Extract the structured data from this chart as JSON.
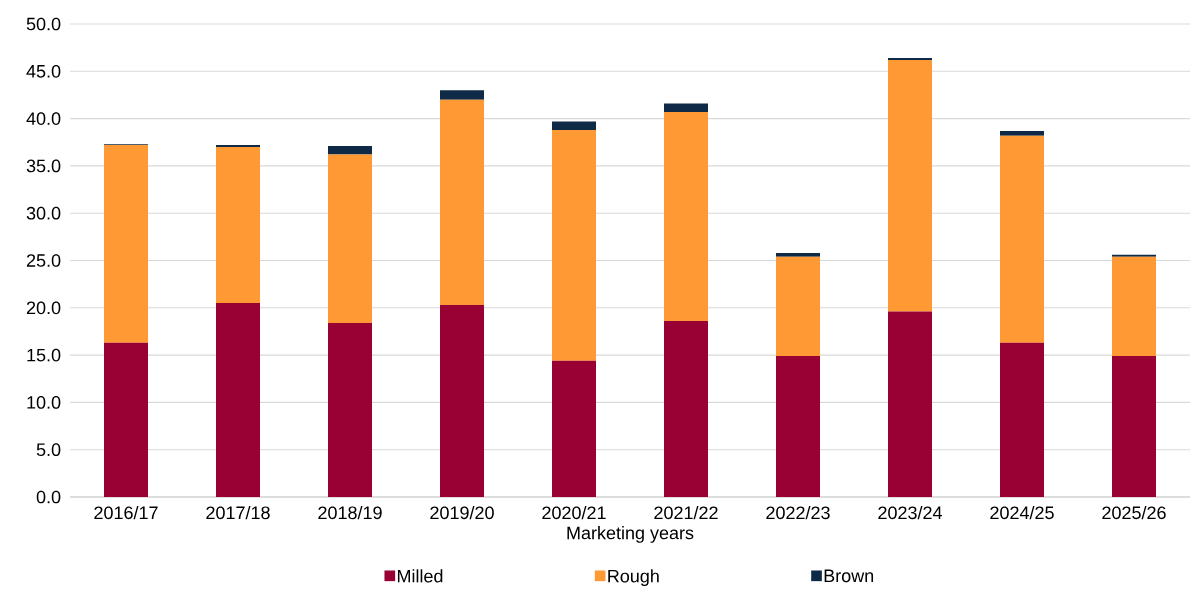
{
  "chart_data": {
    "type": "bar",
    "stacked": true,
    "xlabel": "Marketing years",
    "categories": [
      "2016/17",
      "2017/18",
      "2018/19",
      "2019/20",
      "2020/21",
      "2021/22",
      "2022/23",
      "2023/24",
      "2024/25",
      "2025/26"
    ],
    "series": [
      {
        "name": "Milled",
        "color": "#990033",
        "values": [
          16.3,
          20.5,
          18.4,
          20.3,
          14.4,
          18.6,
          14.9,
          19.6,
          16.3,
          14.9
        ]
      },
      {
        "name": "Rough",
        "color": "#ff9933",
        "values": [
          20.9,
          16.5,
          17.8,
          21.7,
          24.4,
          22.1,
          10.5,
          26.6,
          21.9,
          10.5
        ]
      },
      {
        "name": "Brown",
        "color": "#0f2a47",
        "values": [
          0.1,
          0.2,
          0.9,
          1.0,
          0.9,
          0.9,
          0.4,
          0.2,
          0.5,
          0.2
        ]
      }
    ],
    "ylim": [
      0,
      50
    ],
    "yticks": [
      {
        "value": 0,
        "label": "0.0"
      },
      {
        "value": 5,
        "label": "5.0"
      },
      {
        "value": 10,
        "label": "10.0"
      },
      {
        "value": 15,
        "label": "15.0"
      },
      {
        "value": 20,
        "label": "20.0"
      },
      {
        "value": 25,
        "label": "25.0"
      },
      {
        "value": 30,
        "label": "30.0"
      },
      {
        "value": 35,
        "label": "35.0"
      },
      {
        "value": 40,
        "label": "40.0"
      },
      {
        "value": 45,
        "label": "45.0"
      },
      {
        "value": 50,
        "label": "50.0"
      }
    ],
    "grid": "y",
    "legend": "bottom"
  }
}
